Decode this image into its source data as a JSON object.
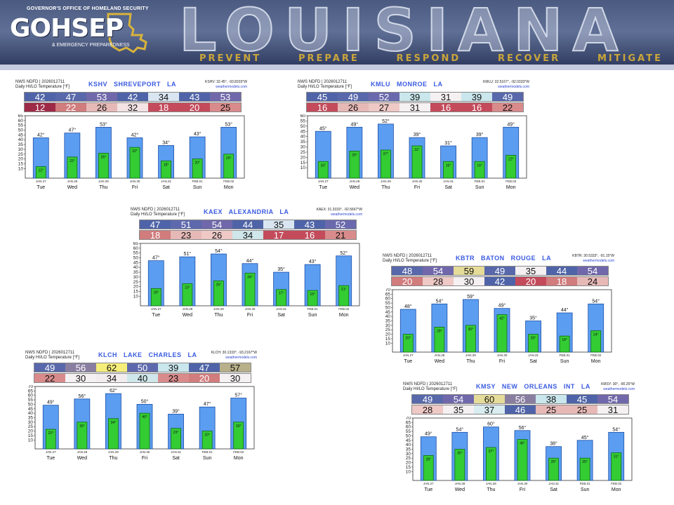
{
  "banner": {
    "org_top": "GOVERNOR'S OFFICE OF HOMELAND SECURITY",
    "org_name": "GOHSEP",
    "org_sub": "& EMERGENCY PREPAREDNESS",
    "bigword": "LOUISIANA",
    "tagline": [
      "PREVENT",
      "PREPARE",
      "RESPOND",
      "RECOVER",
      "MITIGATE"
    ]
  },
  "chart_data": [
    {
      "type": "bar",
      "source_line1": "NWS NDFD | 2026012711",
      "source_line2": "Daily HI/LO Temperature [°F]",
      "station": "KSHV SHREVEPORT LA",
      "coords": "KSHV: 32.45°, -93.8333°W",
      "site": "weathermodels.com",
      "categories": [
        "JAN.27",
        "JAN.28",
        "JAN.29",
        "JAN.30",
        "JAN.31",
        "FEB.01",
        "FEB.02"
      ],
      "days": [
        "Tue",
        "Wed",
        "Thu",
        "Fri",
        "Sat",
        "Sun",
        "Mon"
      ],
      "series": [
        {
          "name": "HI",
          "values": [
            42,
            47,
            53,
            42,
            34,
            43,
            53
          ]
        },
        {
          "name": "LO",
          "values": [
            12,
            22,
            26,
            32,
            18,
            20,
            25
          ]
        }
      ],
      "hi_colors": [
        "#4f64a8",
        "#5868ab",
        "#7068aa",
        "#4f64a8",
        "#d9e6f2",
        "#4f64a8",
        "#7068aa"
      ],
      "lo_colors": [
        "#9d2a46",
        "#d17c7d",
        "#e6b9b7",
        "#f3e3e4",
        "#c44b5b",
        "#c44b5b",
        "#d98b8c"
      ],
      "ylim": [
        0,
        65
      ],
      "yticks": [
        10,
        15,
        20,
        25,
        30,
        35,
        40,
        45,
        50,
        55,
        60,
        65
      ]
    },
    {
      "type": "bar",
      "source_line1": "NWS NDFD | 2026012711",
      "source_line2": "Daily HI/LO Temperature [°F]",
      "station": "KMLU MONROE LA",
      "coords": "KMLU: 32.5167°, -92.0333°W",
      "site": "weathermodels.com",
      "categories": [
        "JAN.27",
        "JAN.28",
        "JAN.29",
        "JAN.30",
        "JAN.31",
        "FEB.01",
        "FEB.02"
      ],
      "days": [
        "Tue",
        "Wed",
        "Thu",
        "Fri",
        "Sat",
        "Sun",
        "Mon"
      ],
      "series": [
        {
          "name": "HI",
          "values": [
            45,
            49,
            52,
            39,
            31,
            39,
            49
          ]
        },
        {
          "name": "LO",
          "values": [
            16,
            26,
            27,
            31,
            16,
            16,
            22
          ]
        }
      ],
      "hi_colors": [
        "#4f64a8",
        "#5868ab",
        "#6a69ad",
        "#c9e7ec",
        "#f5f0f2",
        "#c9e7ec",
        "#5868ab"
      ],
      "lo_colors": [
        "#c44b5b",
        "#e6b9b7",
        "#eec9c6",
        "#f5f0f2",
        "#c44b5b",
        "#c44b5b",
        "#d98b8c"
      ],
      "ylim": [
        0,
        60
      ],
      "yticks": [
        10,
        15,
        20,
        25,
        30,
        35,
        40,
        45,
        50,
        55,
        60
      ]
    },
    {
      "type": "bar",
      "source_line1": "NWS NDFD | 2026012711",
      "source_line2": "Daily HI/LO Temperature [°F]",
      "station": "KAEX ALEXANDRIA LA",
      "coords": "KAEX: 31.3333°, -92.5667°W",
      "site": "weathermodels.com",
      "categories": [
        "JAN.27",
        "JAN.28",
        "JAN.29",
        "JAN.30",
        "JAN.31",
        "FEB.01",
        "FEB.02"
      ],
      "days": [
        "Tue",
        "Wed",
        "Thu",
        "Fri",
        "Sat",
        "Sun",
        "Mon"
      ],
      "series": [
        {
          "name": "HI",
          "values": [
            47,
            51,
            54,
            44,
            35,
            43,
            52
          ]
        },
        {
          "name": "LO",
          "values": [
            18,
            23,
            26,
            34,
            17,
            16,
            21
          ]
        }
      ],
      "hi_colors": [
        "#4f64a8",
        "#5e69ad",
        "#7068aa",
        "#4f64a8",
        "#d9e6f2",
        "#4f64a8",
        "#6a69ad"
      ],
      "lo_colors": [
        "#d17c7d",
        "#e6b9b7",
        "#eec9c6",
        "#cfe6ea",
        "#c44b5b",
        "#c44b5b",
        "#d98b8c"
      ],
      "ylim": [
        0,
        65
      ],
      "yticks": [
        10,
        15,
        20,
        25,
        30,
        35,
        40,
        45,
        50,
        55,
        60,
        65
      ]
    },
    {
      "type": "bar",
      "source_line1": "NWS NDFD | 2026012711",
      "source_line2": "Daily HI/LO Temperature [°F]",
      "station": "KBTR BATON ROUGE LA",
      "coords": "KBTR: 30.5333°, -91.15°W",
      "site": "weathermodels.com",
      "categories": [
        "JAN.27",
        "JAN.28",
        "JAN.29",
        "JAN.30",
        "JAN.31",
        "FEB.01",
        "FEB.02"
      ],
      "days": [
        "Tue",
        "Wed",
        "Thu",
        "Fri",
        "Sat",
        "Sun",
        "Mon"
      ],
      "series": [
        {
          "name": "HI",
          "values": [
            48,
            54,
            59,
            49,
            35,
            44,
            54
          ]
        },
        {
          "name": "LO",
          "values": [
            20,
            28,
            30,
            42,
            20,
            18,
            24
          ]
        }
      ],
      "hi_colors": [
        "#5868ab",
        "#7068aa",
        "#e5dc9a",
        "#5868ab",
        "#f5f0f2",
        "#4f64a8",
        "#7068aa"
      ],
      "lo_colors": [
        "#d17c7d",
        "#eec9c6",
        "#f5f0f2",
        "#4f64a8",
        "#c44b5b",
        "#d17c7d",
        "#e6b9b7"
      ],
      "ylim": [
        0,
        70
      ],
      "yticks": [
        10,
        15,
        20,
        25,
        30,
        35,
        40,
        45,
        50,
        55,
        60,
        65,
        70
      ]
    },
    {
      "type": "bar",
      "source_line1": "NWS NDFD | 2026012711",
      "source_line2": "Daily HI/LO Temperature [°F]",
      "station": "KLCH LAKE CHARLES LA",
      "coords": "KLCH: 30.1333°, -93.2167°W",
      "site": "weathermodels.com",
      "categories": [
        "JAN.27",
        "JAN.28",
        "JAN.29",
        "JAN.30",
        "JAN.31",
        "FEB.01",
        "FEB.02"
      ],
      "days": [
        "Tue",
        "Wed",
        "Thu",
        "Fri",
        "Sat",
        "Sun",
        "Mon"
      ],
      "series": [
        {
          "name": "HI",
          "values": [
            49,
            56,
            62,
            50,
            39,
            47,
            57
          ]
        },
        {
          "name": "LO",
          "values": [
            22,
            30,
            34,
            40,
            23,
            20,
            30
          ]
        }
      ],
      "hi_colors": [
        "#5868ab",
        "#8a7ea0",
        "#f6ee7a",
        "#5e69ad",
        "#c9e7ec",
        "#4f64a8",
        "#b7b08a"
      ],
      "lo_colors": [
        "#d98b8c",
        "#f5f0f2",
        "#f3ecee",
        "#cfe6ea",
        "#d98b8c",
        "#d17c7d",
        "#f5f0f2"
      ],
      "ylim": [
        0,
        70
      ],
      "yticks": [
        10,
        15,
        20,
        25,
        30,
        35,
        40,
        45,
        50,
        55,
        60,
        65,
        70
      ]
    },
    {
      "type": "bar",
      "source_line1": "NWS NDFD | 2026012711",
      "source_line2": "Daily HI/LO Temperature [°F]",
      "station": "KMSY NEW ORLEANS INT LA",
      "coords": "KMSY: 30°, -90.25°W",
      "site": "weathermodels.com",
      "categories": [
        "JAN.27",
        "JAN.28",
        "JAN.29",
        "JAN.30",
        "JAN.31",
        "FEB.01",
        "FEB.02"
      ],
      "days": [
        "Tue",
        "Wed",
        "Thu",
        "Fri",
        "Sat",
        "Sun",
        "Mon"
      ],
      "series": [
        {
          "name": "HI",
          "values": [
            49,
            54,
            60,
            56,
            38,
            45,
            54
          ]
        },
        {
          "name": "LO",
          "values": [
            28,
            35,
            37,
            46,
            25,
            25,
            31
          ]
        }
      ],
      "hi_colors": [
        "#5868ab",
        "#7068aa",
        "#e5dc9a",
        "#8a7ea0",
        "#c9e7ec",
        "#4f64a8",
        "#7068aa"
      ],
      "lo_colors": [
        "#eec9c6",
        "#f5f0f2",
        "#d9edf0",
        "#4f64a8",
        "#e6b9b7",
        "#e6b9b7",
        "#f5f0f2"
      ],
      "ylim": [
        0,
        70
      ],
      "yticks": [
        10,
        15,
        20,
        25,
        30,
        35,
        40,
        45,
        50,
        55,
        60,
        65,
        70
      ]
    }
  ]
}
